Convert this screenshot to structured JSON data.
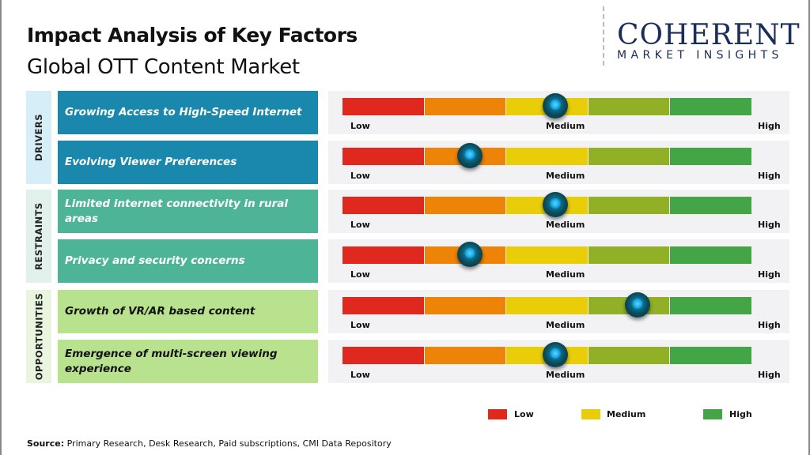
{
  "header": {
    "title": "Impact Analysis of Key Factors",
    "subtitle": "Global OTT Content Market"
  },
  "logo": {
    "top": "COHERENT",
    "bottom": "MARKET INSIGHTS"
  },
  "colors": {
    "drivers": "#1a88ad",
    "restraints": "#4db497",
    "opportunities": "#b9e28f",
    "scale": [
      "#e0291e",
      "#ed8407",
      "#e8cd08",
      "#92b026",
      "#44a546"
    ]
  },
  "chart_data": {
    "type": "gauge",
    "scale_labels": [
      "Low",
      "Medium",
      "High"
    ],
    "range": [
      0,
      1
    ],
    "categories": [
      {
        "name": "DRIVERS",
        "factors": [
          {
            "label": "Growing Access to High-Speed  Internet",
            "impact": 0.52
          },
          {
            "label": "Evolving Viewer Preferences",
            "impact": 0.31
          }
        ]
      },
      {
        "name": "RESTRAINTS",
        "factors": [
          {
            "label": "Limited internet connectivity in rural areas",
            "impact": 0.52
          },
          {
            "label": "Privacy and security concerns",
            "impact": 0.31
          }
        ]
      },
      {
        "name": "OPPORTUNITIES",
        "factors": [
          {
            "label": "Growth of VR/AR based content",
            "impact": 0.72
          },
          {
            "label": "Emergence of multi-screen viewing experience",
            "impact": 0.52
          }
        ]
      }
    ],
    "legend": [
      {
        "label": "Low",
        "color": "#e0291e"
      },
      {
        "label": "Medium",
        "color": "#e8cd08"
      },
      {
        "label": "High",
        "color": "#44a546"
      }
    ]
  },
  "source": {
    "label": "Source:",
    "text": " Primary Research, Desk Research, Paid subscriptions, CMI Data Repository"
  }
}
